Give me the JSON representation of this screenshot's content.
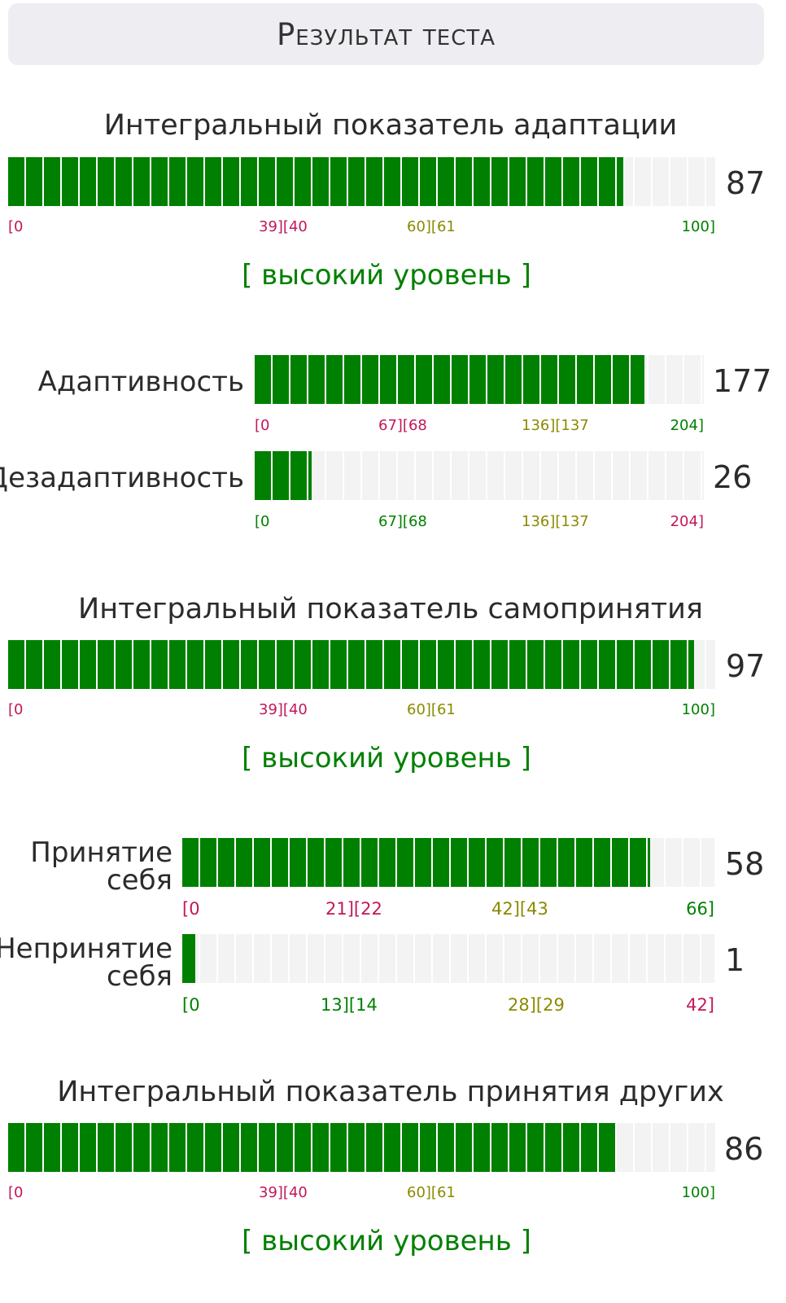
{
  "header": {
    "title": "Результат теста"
  },
  "colors": {
    "fill": "#008000",
    "track": "#f3f3f3",
    "low": "#c2185b",
    "mid": "#8a8a00",
    "high": "#008000"
  },
  "adaptation": {
    "title": "Интегральный показатель адаптации",
    "value": "87",
    "fill_fraction": 0.87,
    "scale": {
      "t0": "[0",
      "t1": "39][40",
      "t2": "60][61",
      "t3": "100]"
    },
    "level": "[ высокий уровень ]",
    "adaptivity": {
      "label": "Адаптивность",
      "value": "177",
      "fill_fraction": 0.868,
      "scale": {
        "t0": "[0",
        "t1": "67][68",
        "t2": "136][137",
        "t3": "204]"
      }
    },
    "maladaptivity": {
      "label": "Дезадаптивность",
      "value": "26",
      "fill_fraction": 0.127,
      "scale": {
        "t0": "[0",
        "t1": "67][68",
        "t2": "136][137",
        "t3": "204]"
      }
    }
  },
  "self_acceptance": {
    "title": "Интегральный показатель самопринятия",
    "value": "97",
    "fill_fraction": 0.97,
    "scale": {
      "t0": "[0",
      "t1": "39][40",
      "t2": "60][61",
      "t3": "100]"
    },
    "level": "[ высокий уровень ]",
    "acceptance": {
      "label_line1": "Принятие",
      "label_line2": "себя",
      "value": "58",
      "fill_fraction": 0.879,
      "scale": {
        "t0": "[0",
        "t1": "21][22",
        "t2": "42][43",
        "t3": "66]"
      }
    },
    "non_acceptance": {
      "label_line1": "Непринятие",
      "label_line2": "себя",
      "value": "1",
      "fill_fraction": 0.024,
      "scale": {
        "t0": "[0",
        "t1": "13][14",
        "t2": "28][29",
        "t3": "42]"
      }
    }
  },
  "others_acceptance": {
    "title": "Интегральный показатель принятия других",
    "value": "86",
    "fill_fraction": 0.86,
    "scale": {
      "t0": "[0",
      "t1": "39][40",
      "t2": "60][61",
      "t3": "100]"
    },
    "level": "[ высокий уровень ]"
  }
}
